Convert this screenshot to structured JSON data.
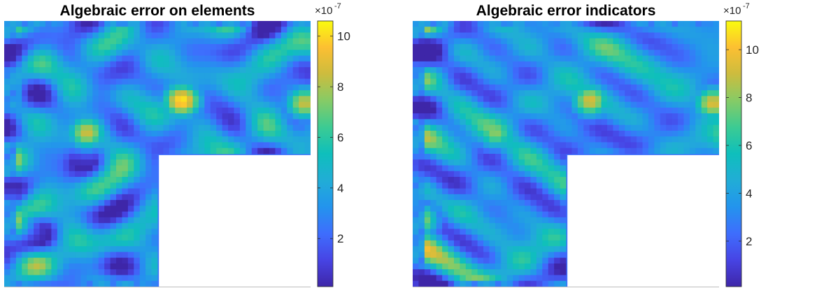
{
  "chart_data": [
    {
      "type": "heatmap",
      "title": "Algebraic error on elements",
      "xlabel": "",
      "ylabel": "",
      "domain_shape": "L-shaped (lower-right quadrant removed)",
      "colormap": "parula",
      "colorbar": {
        "multiplier": "×10",
        "exponent": "-7",
        "ticks": [
          2,
          4,
          6,
          8,
          10
        ],
        "range": [
          0.1,
          10.6
        ]
      },
      "hotspots": [
        {
          "region": "center-upper",
          "value": 10.3
        },
        {
          "region": "left-middle",
          "value": 8.6
        },
        {
          "region": "left-edge-lower",
          "value": 8.8
        },
        {
          "region": "right-edge-upper",
          "value": 8.5
        }
      ]
    },
    {
      "type": "heatmap",
      "title": "Algebraic error indicators",
      "xlabel": "",
      "ylabel": "",
      "domain_shape": "L-shaped (lower-right quadrant removed)",
      "colormap": "parula",
      "colorbar": {
        "multiplier": "×10",
        "exponent": "-7",
        "ticks": [
          2,
          4,
          6,
          8,
          10
        ],
        "range": [
          0.1,
          11.2
        ]
      },
      "hotspots": [
        {
          "region": "center-upper",
          "value": 9.3
        },
        {
          "region": "left-middle",
          "value": 8.0
        },
        {
          "region": "left-edge-lower",
          "value": 8.8
        },
        {
          "region": "right-edge-upper",
          "value": 9.4
        }
      ]
    }
  ]
}
